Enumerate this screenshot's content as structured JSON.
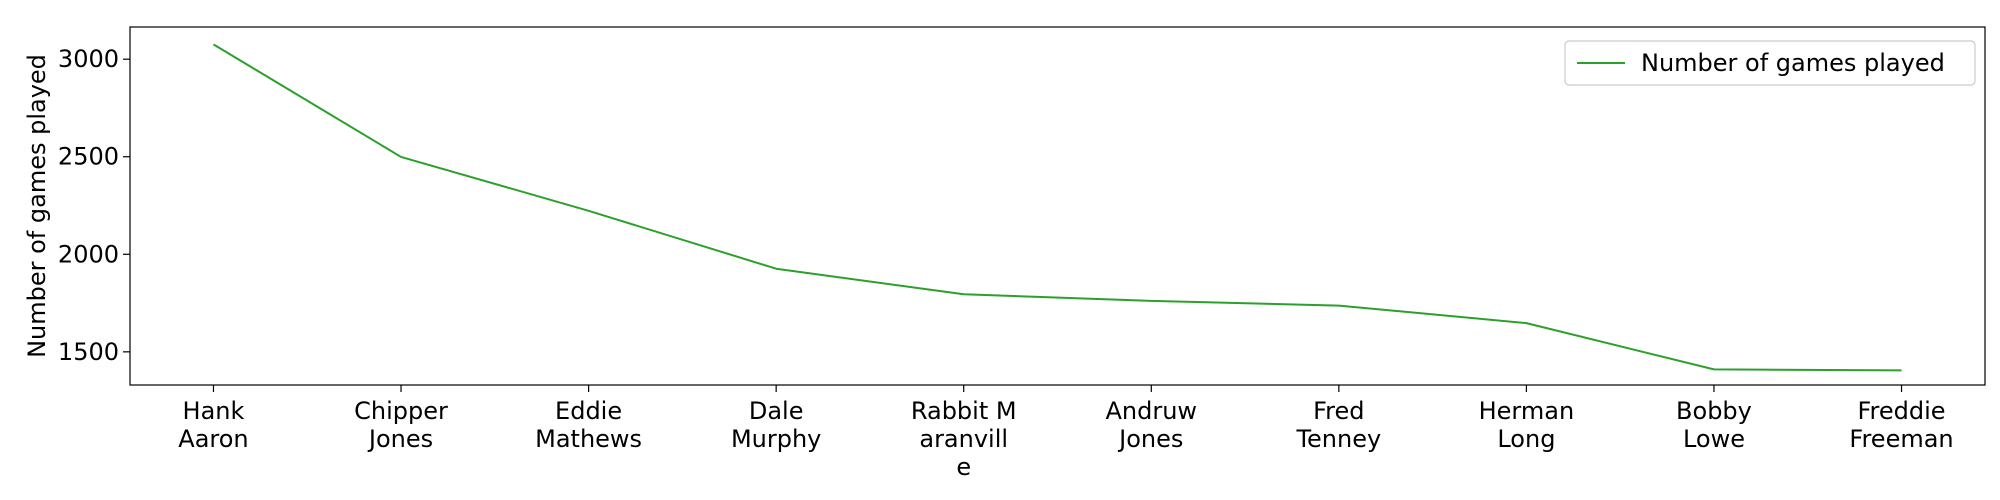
{
  "chart_data": {
    "type": "line",
    "title": "",
    "xlabel": "",
    "ylabel": "Number of games played",
    "categories": [
      [
        "Hank",
        "Aaron"
      ],
      [
        "Chipper",
        "Jones"
      ],
      [
        "Eddie",
        "Mathews"
      ],
      [
        "Dale",
        "Murphy"
      ],
      [
        "Rabbit M",
        "aranvill",
        "e"
      ],
      [
        "Andruw",
        "Jones"
      ],
      [
        "Fred",
        "Tenney"
      ],
      [
        "Herman",
        "Long"
      ],
      [
        "Bobby",
        "Lowe"
      ],
      [
        "Freddie",
        "Freeman"
      ]
    ],
    "series": [
      {
        "name": "Number of games played",
        "color": "#2ca02c",
        "values": [
          3076,
          2499,
          2223,
          1926,
          1795,
          1761,
          1737,
          1647,
          1410,
          1405
        ]
      }
    ],
    "ylim": [
      1330,
      3165
    ],
    "yticks": [
      1500,
      2000,
      2500,
      3000
    ],
    "grid": false,
    "legend_position": "top-right"
  }
}
